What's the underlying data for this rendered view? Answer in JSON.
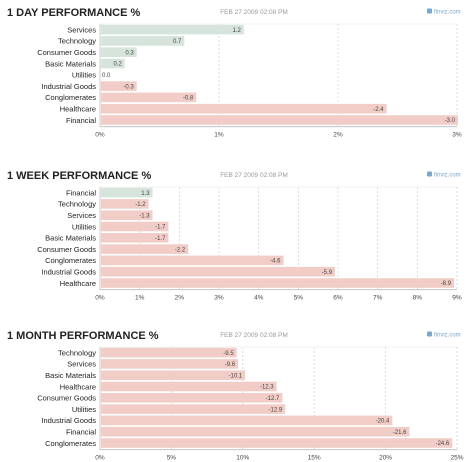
{
  "chart_data": [
    {
      "type": "bar",
      "title": "1 DAY PERFORMANCE %",
      "timestamp": "FEB 27 2009 02:08 PM",
      "source": "finviz.com",
      "categories": [
        "Services",
        "Technology",
        "Consumer Goods",
        "Basic Materials",
        "Utilities",
        "Industrial Goods",
        "Conglomerates",
        "Healthcare",
        "Financial"
      ],
      "values": [
        1.2,
        0.7,
        0.3,
        0.2,
        0.0,
        -0.3,
        -0.8,
        -2.4,
        -3.0
      ],
      "value_labels": [
        "1.2",
        "0.7",
        "0.3",
        "0.2",
        "0.0",
        "-0.3",
        "-0.8",
        "-2.4",
        "-3.0"
      ],
      "xticks": [
        "0%",
        "1%",
        "2%",
        "3%"
      ],
      "xlim": [
        0,
        3
      ],
      "grid": true,
      "colors": {
        "positive": "#d6e4dc",
        "negative": "#f2cdc7"
      }
    },
    {
      "type": "bar",
      "title": "1 WEEK PERFORMANCE %",
      "timestamp": "FEB 27 2009 02:08 PM",
      "source": "finviz.com",
      "categories": [
        "Financial",
        "Technology",
        "Services",
        "Utilities",
        "Basic Materials",
        "Consumer Goods",
        "Conglomerates",
        "Industrial Goods",
        "Healthcare"
      ],
      "values": [
        1.3,
        -1.2,
        -1.3,
        -1.7,
        -1.7,
        -2.2,
        -4.6,
        -5.9,
        -8.9
      ],
      "value_labels": [
        "1.3",
        "-1.2",
        "-1.3",
        "-1.7",
        "-1.7",
        "-2.2",
        "-4.6",
        "-5.9",
        "-8.9"
      ],
      "xticks": [
        "0%",
        "1%",
        "2%",
        "3%",
        "4%",
        "5%",
        "6%",
        "7%",
        "8%",
        "9%"
      ],
      "xlim": [
        0,
        9
      ],
      "grid": true,
      "colors": {
        "positive": "#d6e4dc",
        "negative": "#f2cdc7"
      }
    },
    {
      "type": "bar",
      "title": "1 MONTH PERFORMANCE %",
      "timestamp": "FEB 27 2009 02:08 PM",
      "source": "finviz.com",
      "categories": [
        "Technology",
        "Services",
        "Basic Materials",
        "Healthcare",
        "Consumer Goods",
        "Utilities",
        "Industrial Goods",
        "Financial",
        "Conglomerates"
      ],
      "values": [
        -9.5,
        -9.6,
        -10.1,
        -12.3,
        -12.7,
        -12.9,
        -20.4,
        -21.6,
        -24.6
      ],
      "value_labels": [
        "-9.5",
        "-9.6",
        "-10.1",
        "-12.3",
        "-12.7",
        "-12.9",
        "-20.4",
        "-21.6",
        "-24.6"
      ],
      "xticks": [
        "0%",
        "5%",
        "10%",
        "15%",
        "20%",
        "25%"
      ],
      "xlim": [
        0,
        25
      ],
      "grid": true,
      "colors": {
        "positive": "#d6e4dc",
        "negative": "#f2cdc7"
      }
    }
  ]
}
